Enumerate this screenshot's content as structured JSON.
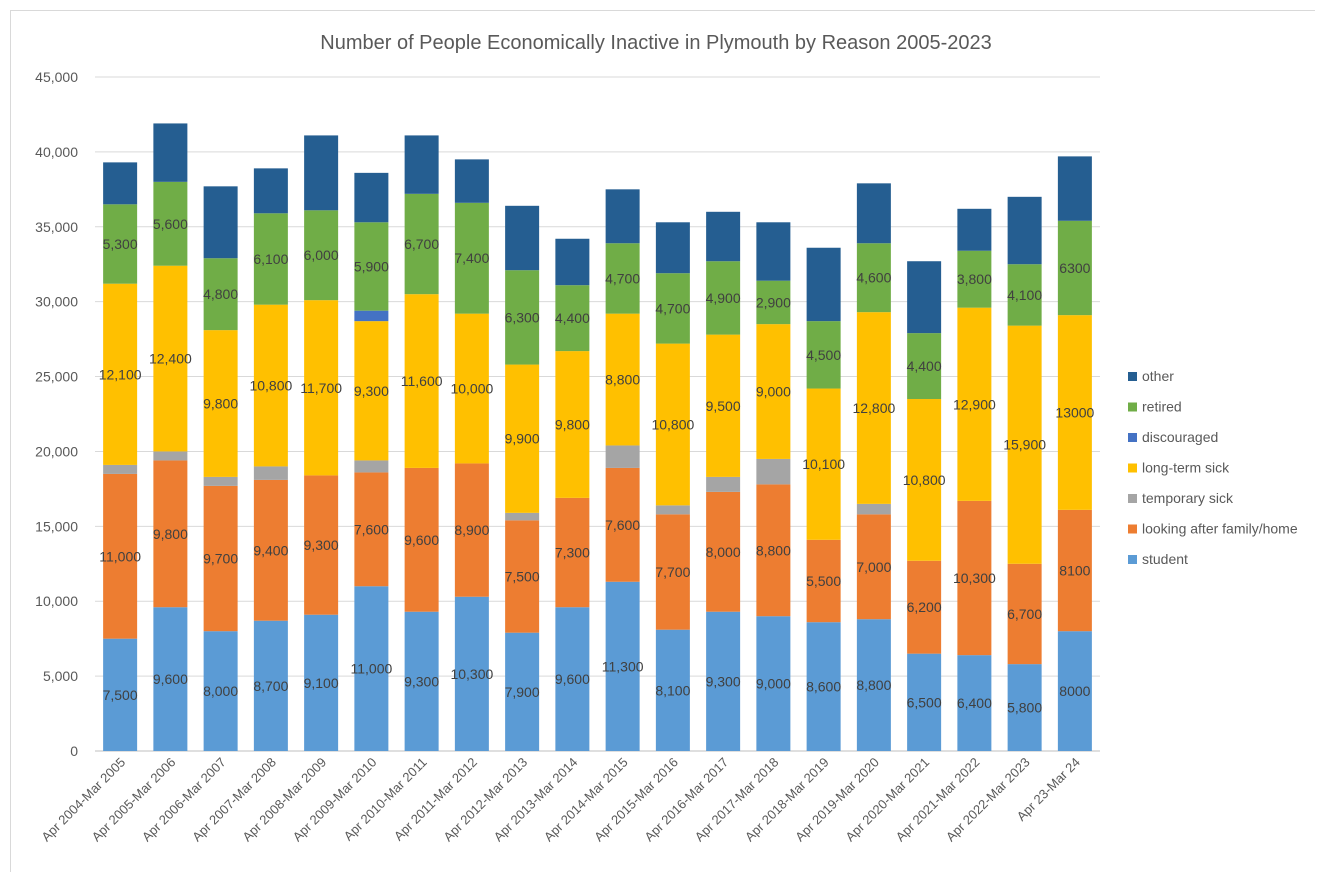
{
  "chart_data": {
    "type": "bar",
    "stacked": true,
    "title": "Number of People Economically Inactive in Plymouth by Reason 2005-2023",
    "xlabel": "",
    "ylabel": "",
    "ylim": [
      0,
      45000
    ],
    "yticks": [
      0,
      5000,
      10000,
      15000,
      20000,
      25000,
      30000,
      35000,
      40000,
      45000
    ],
    "ytick_labels": [
      "0",
      "5,000",
      "10,000",
      "15,000",
      "20,000",
      "25,000",
      "30,000",
      "35,000",
      "40,000",
      "45,000"
    ],
    "grid": true,
    "legend_position": "right",
    "categories": [
      "Apr 2004-Mar 2005",
      "Apr 2005-Mar 2006",
      "Apr 2006-Mar 2007",
      "Apr 2007-Mar 2008",
      "Apr 2008-Mar 2009",
      "Apr 2009-Mar 2010",
      "Apr 2010-Mar 2011",
      "Apr 2011-Mar 2012",
      "Apr 2012-Mar 2013",
      "Apr 2013-Mar 2014",
      "Apr 2014-Mar 2015",
      "Apr 2015-Mar 2016",
      "Apr 2016-Mar 2017",
      "Apr 2017-Mar 2018",
      "Apr 2018-Mar 2019",
      "Apr 2019-Mar 2020",
      "Apr 2020-Mar 2021",
      "Apr 2021-Mar 2022",
      "Apr 2022-Mar 2023",
      "Apr 23-Mar 24"
    ],
    "series": [
      {
        "name": "student",
        "color": "#5b9bd5",
        "values": [
          7500,
          9600,
          8000,
          8700,
          9100,
          11000,
          9300,
          10300,
          7900,
          9600,
          11300,
          8100,
          9300,
          9000,
          8600,
          8800,
          6500,
          6400,
          5800,
          8000
        ],
        "labels": [
          "7,500",
          "9,600",
          "8,000",
          "8,700",
          "9,100",
          "11,000",
          "9,300",
          "10,300",
          "7,900",
          "9,600",
          "11,300",
          "8,100",
          "9,300",
          "9,000",
          "8,600",
          "8,800",
          "6,500",
          "6,400",
          "5,800",
          "8000"
        ]
      },
      {
        "name": "looking after family/home",
        "color": "#ed7d31",
        "values": [
          11000,
          9800,
          9700,
          9400,
          9300,
          7600,
          9600,
          8900,
          7500,
          7300,
          7600,
          7700,
          8000,
          8800,
          5500,
          7000,
          6200,
          10300,
          6700,
          8100
        ],
        "labels": [
          "11,000",
          "9,800",
          "9,700",
          "9,400",
          "9,300",
          "7,600",
          "9,600",
          "8,900",
          "7,500",
          "7,300",
          "7,600",
          "7,700",
          "8,000",
          "8,800",
          "5,500",
          "7,000",
          "6,200",
          "10,300",
          "6,700",
          "8100"
        ]
      },
      {
        "name": "temporary sick",
        "color": "#a5a5a5",
        "values": [
          600,
          600,
          600,
          900,
          0,
          800,
          0,
          0,
          500,
          0,
          1500,
          600,
          1000,
          1700,
          0,
          700,
          0,
          0,
          0,
          0
        ],
        "labels": []
      },
      {
        "name": "long-term sick",
        "color": "#ffc000",
        "values": [
          12100,
          12400,
          9800,
          10800,
          11700,
          9300,
          11600,
          10000,
          9900,
          9800,
          8800,
          10800,
          9500,
          9000,
          10100,
          12800,
          10800,
          12900,
          15900,
          13000
        ],
        "labels": [
          "12,100",
          "12,400",
          "9,800",
          "10,800",
          "11,700",
          "9,300",
          "11,600",
          "10,000",
          "9,900",
          "9,800",
          "8,800",
          "10,800",
          "9,500",
          "9,000",
          "10,100",
          "12,800",
          "10,800",
          "12,900",
          "15,900",
          "13000"
        ]
      },
      {
        "name": "discouraged",
        "color": "#4472c4",
        "values": [
          0,
          0,
          0,
          0,
          0,
          700,
          0,
          0,
          0,
          0,
          0,
          0,
          0,
          0,
          0,
          0,
          0,
          0,
          0,
          0
        ],
        "labels": []
      },
      {
        "name": "retired",
        "color": "#70ad47",
        "values": [
          5300,
          5600,
          4800,
          6100,
          6000,
          5900,
          6700,
          7400,
          6300,
          4400,
          4700,
          4700,
          4900,
          2900,
          4500,
          4600,
          4400,
          3800,
          4100,
          6300
        ],
        "labels": [
          "5,300",
          "5,600",
          "4,800",
          "6,100",
          "6,000",
          "5,900",
          "6,700",
          "7,400",
          "6,300",
          "4,400",
          "4,700",
          "4,700",
          "4,900",
          "2,900",
          "4,500",
          "4,600",
          "4,400",
          "3,800",
          "4,100",
          "6300"
        ]
      },
      {
        "name": "other",
        "color": "#255e91",
        "values": [
          2800,
          3900,
          4800,
          3000,
          5000,
          3300,
          3900,
          2900,
          4300,
          3100,
          3600,
          3400,
          3300,
          3900,
          4900,
          4000,
          4800,
          2800,
          4500,
          4300
        ],
        "labels": []
      }
    ],
    "legend_order": [
      "other",
      "retired",
      "discouraged",
      "long-term sick",
      "temporary sick",
      "looking after family/home",
      "student"
    ]
  }
}
